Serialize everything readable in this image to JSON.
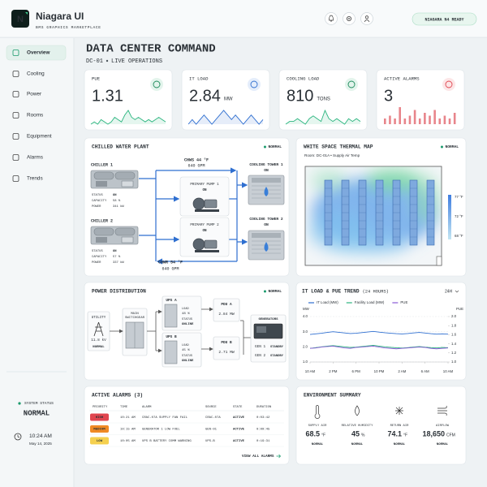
{
  "header": {
    "logo": "N",
    "title": "Niagara UI",
    "subtitle": "BMS GRAPHICS MARKETPLACE",
    "badge": "NIAGARA N4 READY"
  },
  "nav": [
    "Overview",
    "Cooling",
    "Power",
    "Rooms",
    "Equipment",
    "Alarms",
    "Trends"
  ],
  "system_status": {
    "label": "SYSTEM STATUS",
    "value": "NORMAL",
    "time": "10:24 AM",
    "date": "May 14, 2025"
  },
  "page": {
    "title": "DATA CENTER COMMAND",
    "site": "DC-01",
    "mode": "LIVE OPERATIONS"
  },
  "kpis": [
    {
      "label": "PUE",
      "value": "1.31",
      "trend": [
        3,
        4,
        3,
        5,
        4,
        3,
        4,
        6,
        5,
        4,
        7,
        9,
        6,
        5,
        6,
        5,
        4,
        5,
        4,
        5,
        6,
        5,
        4
      ]
    },
    {
      "label": "IT LOAD",
      "value": "2.84",
      "unit": "MW",
      "trend": [
        4,
        5,
        4,
        5,
        6,
        5,
        4,
        5,
        6,
        7,
        6,
        5,
        6,
        5,
        4,
        5,
        6,
        5,
        4,
        5
      ]
    },
    {
      "label": "COOLING LOAD",
      "value": "810",
      "unit": "TONS",
      "trend": [
        4,
        5,
        5,
        6,
        5,
        4,
        6,
        7,
        6,
        5,
        9,
        6,
        5,
        6,
        5,
        4,
        6,
        5,
        6,
        5
      ]
    },
    {
      "label": "ACTIVE ALARMS",
      "value": "3",
      "bars": [
        2,
        3,
        2,
        6,
        2,
        3,
        5,
        2,
        4,
        3,
        5,
        2,
        3,
        2,
        4
      ]
    }
  ],
  "plant": {
    "title": "CHILLED WATER PLANT",
    "status": "NORMAL",
    "chillers": [
      {
        "name": "CHILLER 1",
        "rows": [
          [
            "STATUS",
            "ON"
          ],
          [
            "CAPACITY",
            "58 %"
          ],
          [
            "POWER",
            "341 kW"
          ]
        ]
      },
      {
        "name": "CHILLER 2",
        "rows": [
          [
            "STATUS",
            "ON"
          ],
          [
            "CAPACITY",
            "57 %"
          ],
          [
            "POWER",
            "337 kW"
          ]
        ]
      }
    ],
    "supply": [
      "CHWS 44 °F",
      "640 GPM"
    ],
    "return": [
      "CHWR 54 °F",
      "640 GPM"
    ],
    "pumps": [
      {
        "name": "PRIMARY PUMP 1",
        "state": "ON"
      },
      {
        "name": "PRIMARY PUMP 2",
        "state": "ON"
      }
    ],
    "towers": [
      {
        "name": "COOLING TOWER 1",
        "state": "ON"
      },
      {
        "name": "COOLING TOWER 2",
        "state": "ON"
      }
    ]
  },
  "thermal": {
    "title": "WHITE SPACE THERMAL MAP",
    "status": "NORMAL",
    "caption": "Room: DC-01A • Supply Air Temp",
    "legend": [
      "77 °F",
      "72 °F",
      "68 °F"
    ]
  },
  "power": {
    "title": "POWER DISTRIBUTION",
    "status": "NORMAL",
    "utility": {
      "name": "UTILITY",
      "voltage": "11.8 kV",
      "state": "NORMAL"
    },
    "switchgear": [
      "MAIN",
      "SWITCHGEAR"
    ],
    "ups": [
      {
        "name": "UPS A",
        "load_label": "LOAD",
        "load": "48 %",
        "status_label": "STATUS",
        "status": "ONLINE"
      },
      {
        "name": "UPS B",
        "load_label": "LOAD",
        "load": "45 %",
        "status_label": "STATUS",
        "status": "ONLINE"
      }
    ],
    "pdus": [
      {
        "name": "PDU A",
        "load": "2.84 MW"
      },
      {
        "name": "PDU B",
        "load": "2.71 MW"
      }
    ],
    "generators": {
      "title": "GENERATORS",
      "units": [
        {
          "name": "GEN 1",
          "state": "STANDBY"
        },
        {
          "name": "GEN 2",
          "state": "STANDBY"
        }
      ]
    }
  },
  "alarms": {
    "title": "ACTIVE ALARMS (3)",
    "columns": [
      "PRIORITY",
      "TIME",
      "ALARM",
      "SOURCE",
      "STATE",
      "DURATION"
    ],
    "rows": [
      [
        "HIGH",
        "10:21 AM",
        "CRAC-07A SUPPLY FAN FAIL",
        "CRAC-07A",
        "ACTIVE",
        "0:03:42"
      ],
      [
        "MEDIUM",
        "10:15 AM",
        "GENERATOR 1 LOW FUEL",
        "GEN-01",
        "ACTIVE",
        "0:09:45"
      ],
      [
        "LOW",
        "10:05 AM",
        "UPS B BATTERY COMM WARNING",
        "UPS-B",
        "ACTIVE",
        "0:19:31"
      ]
    ],
    "link": "VIEW ALL ALARMS"
  },
  "environment": {
    "title": "ENVIRONMENT SUMMARY",
    "items": [
      {
        "label": "SUPPLY AIR",
        "value": "68.5",
        "unit": "°F",
        "status": "NORMAL"
      },
      {
        "label": "RELATIVE HUMIDITY",
        "value": "45",
        "unit": "%",
        "status": "NORMAL"
      },
      {
        "label": "RETURN AIR",
        "value": "74.1",
        "unit": "°F",
        "status": "NORMAL"
      },
      {
        "label": "AIRFLOW",
        "value": "18,650",
        "unit": "CFM",
        "status": "NORMAL"
      }
    ]
  },
  "chart_data": {
    "type": "line",
    "title": "IT LOAD & PUE TREND",
    "subtitle": "(24 HOURS)",
    "range": "24H",
    "y_label": "MW",
    "y2_label": "PUE",
    "x": [
      0,
      1,
      2,
      3,
      4,
      5,
      6,
      7,
      8,
      9,
      10,
      11,
      12,
      13,
      14,
      15,
      16,
      17,
      18,
      19,
      20,
      21,
      22,
      23,
      24
    ],
    "xlim": [
      0,
      24
    ],
    "xticks": [
      {
        "value": 0,
        "label": "10 AM"
      },
      {
        "value": 4,
        "label": "2 PM"
      },
      {
        "value": 8,
        "label": "6 PM"
      },
      {
        "value": 12,
        "label": "10 PM"
      },
      {
        "value": 16,
        "label": "2 AM"
      },
      {
        "value": 20,
        "label": "6 AM"
      },
      {
        "value": 24,
        "label": "10 AM"
      }
    ],
    "ylim": [
      1,
      4
    ],
    "yticks": [
      {
        "value": 1,
        "label": "1.0"
      },
      {
        "value": 2,
        "label": "2.0"
      },
      {
        "value": 3,
        "label": "3.0"
      },
      {
        "value": 4,
        "label": "4.0"
      }
    ],
    "y2lim": [
      1,
      2
    ],
    "y2ticks": [
      {
        "value": 1,
        "label": "1.0"
      },
      {
        "value": 1.2,
        "label": "1.2"
      },
      {
        "value": 1.4,
        "label": "1.4"
      },
      {
        "value": 1.6,
        "label": "1.6"
      },
      {
        "value": 1.8,
        "label": "1.8"
      },
      {
        "value": 2,
        "label": "2.0"
      }
    ],
    "grid": true,
    "series": [
      {
        "name": "IT Load (MW)",
        "color": "#2f6fd0",
        "values": [
          2.82,
          2.86,
          2.9,
          2.95,
          3.0,
          2.96,
          2.92,
          2.88,
          2.9,
          2.94,
          2.98,
          3.02,
          2.97,
          2.93,
          2.9,
          2.87,
          2.85,
          2.88,
          2.92,
          2.95,
          2.91,
          2.87,
          2.84,
          2.86,
          2.84
        ]
      },
      {
        "name": "Facility Load (MW)",
        "color": "#2bb57f",
        "values": [
          1.9,
          1.95,
          2.0,
          2.05,
          2.08,
          2.04,
          2.0,
          1.96,
          1.98,
          2.02,
          2.06,
          2.1,
          2.05,
          2.0,
          1.97,
          1.94,
          1.92,
          1.95,
          1.99,
          2.02,
          1.98,
          1.95,
          1.93,
          1.96,
          1.94
        ]
      },
      {
        "name": "PUE",
        "color": "#8a5ad6",
        "axis": "y2",
        "values": [
          1.3,
          1.31,
          1.33,
          1.34,
          1.35,
          1.33,
          1.31,
          1.3,
          1.32,
          1.33,
          1.34,
          1.35,
          1.33,
          1.31,
          1.3,
          1.29,
          1.3,
          1.31,
          1.32,
          1.33,
          1.32,
          1.3,
          1.29,
          1.3,
          1.31
        ]
      }
    ]
  }
}
